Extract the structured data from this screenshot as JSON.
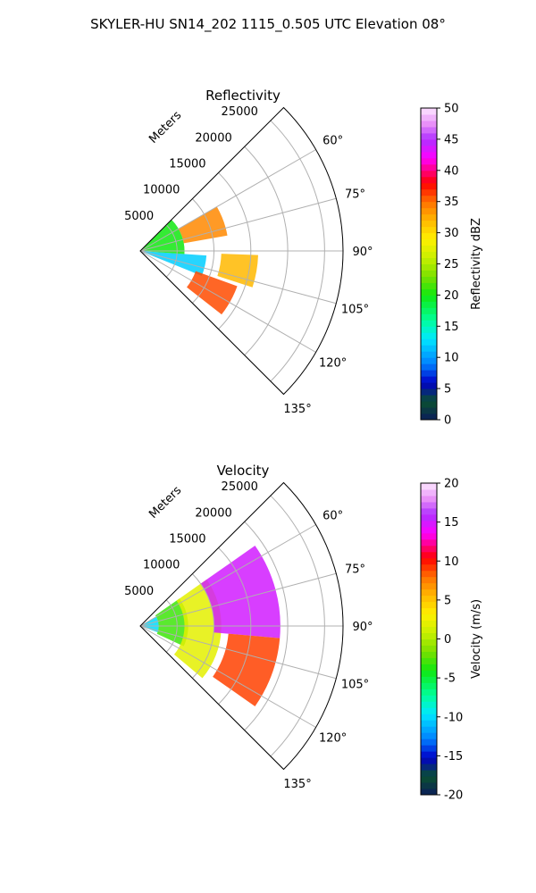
{
  "figure": {
    "title": "SKYLER-HU  SN14_202  1115_0.505 UTC Elevation 08°"
  },
  "chart_data": [
    {
      "type": "heatmap",
      "subtype": "polar-sector-radar",
      "title": "Reflectivity",
      "radial_axis_label": "Meters",
      "radial_ticks": [
        "5000",
        "10000",
        "15000",
        "20000",
        "25000"
      ],
      "radial_tick_values": [
        5000,
        10000,
        15000,
        20000,
        25000
      ],
      "rmax": 27500,
      "theta_range_deg": [
        45,
        135
      ],
      "theta_ticks": [
        "60°",
        "75°",
        "90°",
        "105°",
        "120°",
        "135°"
      ],
      "theta_tick_values": [
        60,
        75,
        90,
        105,
        120,
        135
      ],
      "grid": true,
      "colorbar": {
        "label": "Reflectivity dBZ",
        "range": [
          0,
          50
        ],
        "ticks": [
          "0",
          "5",
          "10",
          "15",
          "20",
          "25",
          "30",
          "35",
          "40",
          "45",
          "50"
        ],
        "tick_values": [
          0,
          5,
          10,
          15,
          20,
          25,
          30,
          35,
          40,
          45,
          50
        ]
      },
      "field": {
        "data_extent_r": 19000,
        "cells": [
          {
            "r_min": 0,
            "r_max": 9000,
            "theta_min": 94,
            "theta_max": 112,
            "value": 12
          },
          {
            "r_min": 0,
            "r_max": 6000,
            "theta_min": 45,
            "theta_max": 94,
            "value": 20
          },
          {
            "r_min": 6000,
            "r_max": 12000,
            "theta_min": 60,
            "theta_max": 80,
            "value": 34
          },
          {
            "r_min": 11000,
            "r_max": 16000,
            "theta_min": 92,
            "theta_max": 108,
            "value": 32
          },
          {
            "r_min": 8000,
            "r_max": 14000,
            "theta_min": 110,
            "theta_max": 128,
            "value": 36
          }
        ]
      }
    },
    {
      "type": "heatmap",
      "subtype": "polar-sector-radar",
      "title": "Velocity",
      "radial_axis_label": "Meters",
      "radial_ticks": [
        "5000",
        "10000",
        "15000",
        "20000",
        "25000"
      ],
      "radial_tick_values": [
        5000,
        10000,
        15000,
        20000,
        25000
      ],
      "rmax": 27500,
      "theta_range_deg": [
        45,
        135
      ],
      "theta_ticks": [
        "60°",
        "75°",
        "90°",
        "105°",
        "120°",
        "135°"
      ],
      "theta_tick_values": [
        60,
        75,
        90,
        105,
        120,
        135
      ],
      "grid": true,
      "colorbar": {
        "label": "Velocity (m/s)",
        "range": [
          -20,
          20
        ],
        "ticks": [
          "-20",
          "-15",
          "-10",
          "-5",
          "0",
          "5",
          "10",
          "15",
          "20"
        ],
        "tick_values": [
          -20,
          -15,
          -10,
          -5,
          0,
          5,
          10,
          15,
          20
        ]
      },
      "field": {
        "data_extent_r": 19000,
        "cells": [
          {
            "r_min": 0,
            "r_max": 2500,
            "theta_min": 60,
            "theta_max": 110,
            "value": -10
          },
          {
            "r_min": 2500,
            "r_max": 6500,
            "theta_min": 55,
            "theta_max": 115,
            "value": -3
          },
          {
            "r_min": 6000,
            "r_max": 11000,
            "theta_min": 55,
            "theta_max": 130,
            "value": 2
          },
          {
            "r_min": 10000,
            "r_max": 19000,
            "theta_min": 55,
            "theta_max": 95,
            "value": 15
          },
          {
            "r_min": 12000,
            "r_max": 19000,
            "theta_min": 95,
            "theta_max": 125,
            "value": 9
          }
        ]
      }
    }
  ]
}
